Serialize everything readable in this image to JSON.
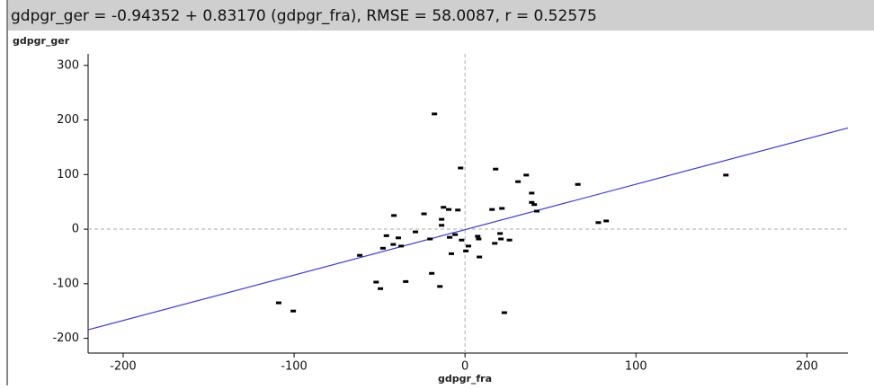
{
  "chart_data": {
    "type": "scatter",
    "title": "gdpgr_ger = -0.94352 + 0.83170 (gdpgr_fra), RMSE = 58.0087, r = 0.52575",
    "x_label": "gdpgr_fra",
    "y_label": "gdpgr_ger",
    "regression": {
      "intercept": -0.94352,
      "slope": 0.8317,
      "color": "#3a3ae0"
    },
    "color": "#000000",
    "xlim": [
      -220.5,
      224
    ],
    "ylim": [
      -227,
      321
    ],
    "xticks": [
      -200,
      -100,
      0,
      100,
      200
    ],
    "yticks": [
      -200,
      -100,
      0,
      100,
      200,
      300
    ],
    "reference_lines": {
      "x": 0,
      "y": 0
    },
    "series": [
      {
        "name": "gdpgr",
        "color": "#000000",
        "x": [
          -17.9,
          -2.6,
          17.9,
          35.8,
          31,
          66,
          152.6,
          39,
          39,
          40.5,
          42,
          21.6,
          15.8,
          -12.6,
          -9.5,
          -4.2,
          -24,
          -41.6,
          -13.7,
          -13.7,
          -29,
          -46,
          -39,
          -20.5,
          -9,
          -2,
          -5.8,
          7.4,
          8,
          20.5,
          21,
          26,
          17.4,
          2,
          -42,
          -48,
          -37.4,
          0.5,
          -8,
          8.4,
          -61.6,
          78,
          82.6,
          -19.5,
          -52,
          -49.5,
          -34.7,
          -14.7,
          -109,
          -100.5,
          23
        ],
        "values": [
          211,
          112,
          110,
          99,
          87,
          82,
          99,
          66,
          49,
          45,
          33,
          38,
          36,
          40,
          36,
          35,
          28,
          25,
          18,
          7,
          -5,
          -12,
          -16,
          -18,
          -15,
          -20,
          -10,
          -13,
          -18,
          -8,
          -18,
          -20,
          -26,
          -31,
          -28,
          -35,
          -31,
          -40,
          -45,
          -51,
          -48,
          12,
          15,
          -81,
          -97,
          -109,
          -96,
          -105,
          -135,
          -150,
          -153
        ]
      }
    ]
  }
}
